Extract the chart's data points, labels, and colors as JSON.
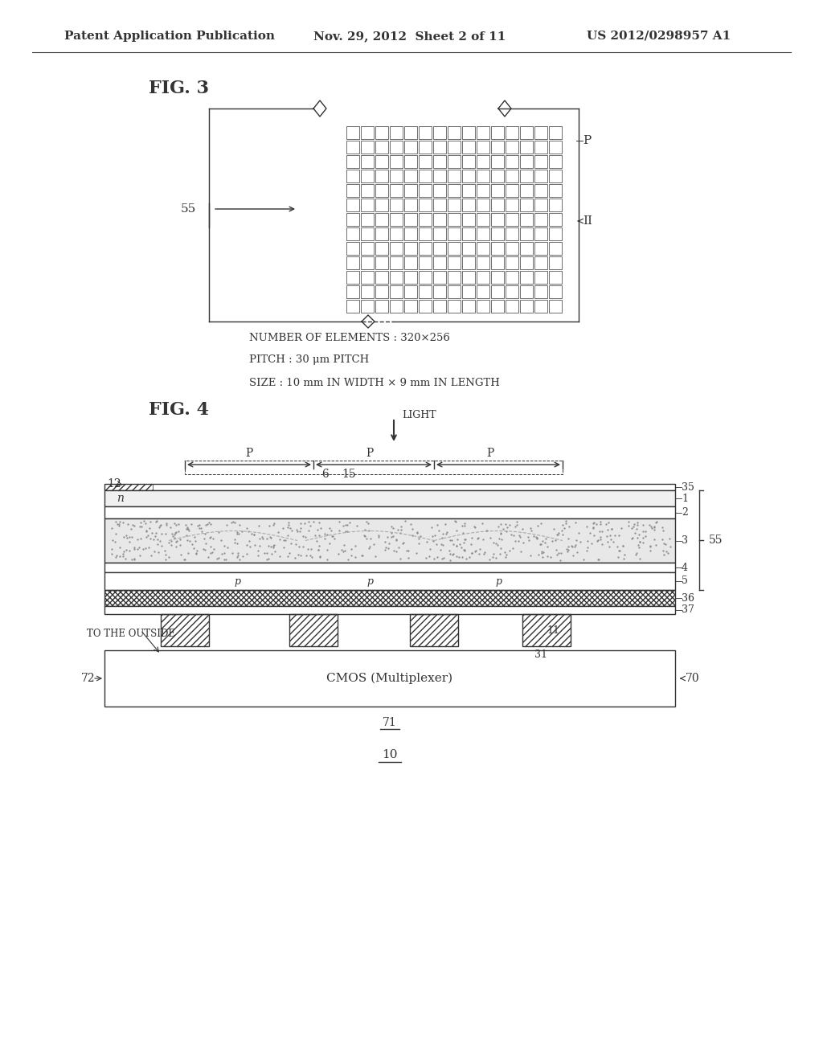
{
  "bg_color": "#ffffff",
  "header_text1": "Patent Application Publication",
  "header_text2": "Nov. 29, 2012  Sheet 2 of 11",
  "header_text3": "US 2012/0298957 A1",
  "fig3_title": "FIG. 3",
  "fig4_title": "FIG. 4",
  "fig3_notes": [
    "NUMBER OF ELEMENTS : 320×256",
    "PITCH : 30 μm PITCH",
    "SIZE : 10 mm IN WIDTH × 9 mm IN LENGTH"
  ],
  "line_color": "#333333",
  "hatch_color": "#555555",
  "light_gray": "#aaaaaa",
  "dot_color": "#cccccc"
}
